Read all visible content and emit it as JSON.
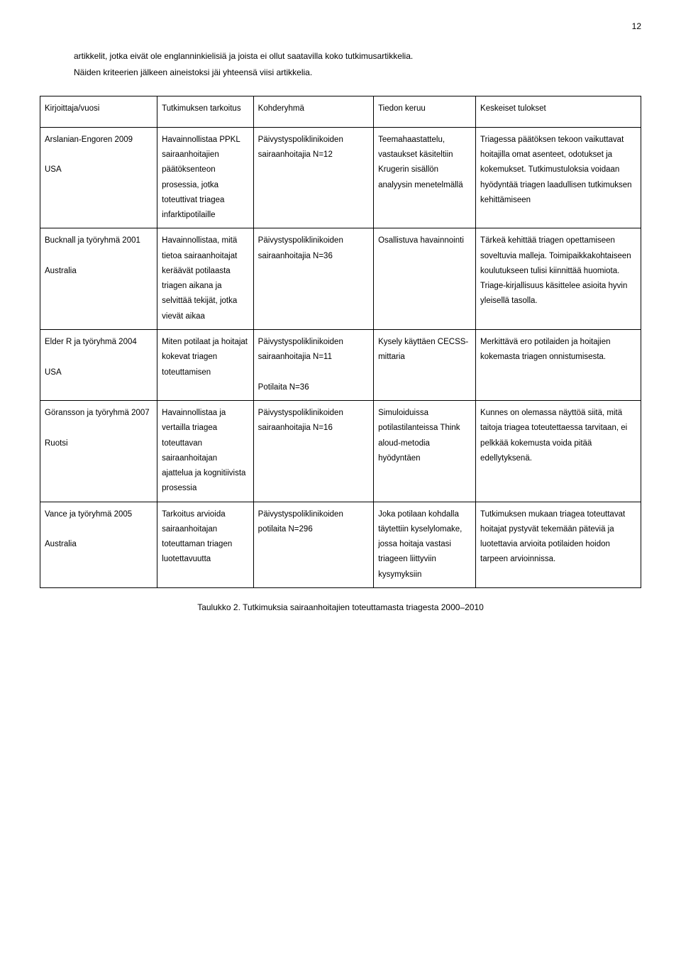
{
  "page_number": "12",
  "intro_line1": "artikkelit, jotka eivät ole englanninkielisiä ja joista ei ollut saatavilla koko tutkimusartikkelia.",
  "intro_line2": "Näiden kriteerien jälkeen aineistoksi jäi yhteensä viisi artikkelia.",
  "header": {
    "c1": "Kirjoittaja/vuosi",
    "c2": "Tutkimuksen tarkoitus",
    "c3": "Kohderyhmä",
    "c4": "Tiedon keruu",
    "c5": "Keskeiset tulokset"
  },
  "rows": [
    {
      "c1": "Arslanian-Engoren 2009\n\nUSA",
      "c2": "Havainnollistaa PPKL sairaanhoitajien päätöksenteon prosessia, jotka toteuttivat triagea infarktipotilaille",
      "c3": "Päivystyspoliklinikoiden sairaanhoitajia N=12",
      "c4": "Teemahaastattelu, vastaukset käsiteltiin Krugerin sisällön analyysin menetelmällä",
      "c5": "Triagessa päätöksen tekoon vaikuttavat hoitajilla omat asenteet, odotukset ja kokemukset. Tutkimustuloksia voidaan hyödyntää triagen laadullisen tutkimuksen kehittämiseen"
    },
    {
      "c1": "Bucknall ja työryhmä 2001\n\nAustralia",
      "c2": "Havainnollistaa, mitä tietoa sairaanhoitajat keräävät potilaasta triagen aikana ja selvittää tekijät, jotka vievät aikaa",
      "c3": "Päivystyspoliklinikoiden sairaanhoitajia N=36",
      "c4": "Osallistuva havainnointi",
      "c5": "Tärkeä kehittää triagen opettamiseen soveltuvia malleja. Toimipaikkakohtaiseen koulutukseen tulisi kiinnittää huomiota. Triage-kirjallisuus käsittelee asioita hyvin yleisellä tasolla."
    },
    {
      "c1": "Elder R ja työryhmä 2004\n\nUSA",
      "c2": "Miten potilaat ja hoitajat kokevat triagen toteuttamisen",
      "c3": "Päivystyspoliklinikoiden sairaanhoitajia N=11\n\nPotilaita N=36",
      "c4": "Kysely käyttäen CECSS-mittaria",
      "c5": "Merkittävä ero potilaiden ja hoitajien kokemasta triagen onnistumisesta."
    },
    {
      "c1": "Göransson ja työryhmä 2007\n\nRuotsi",
      "c2": "Havainnollistaa ja vertailla triagea toteuttavan sairaanhoitajan ajattelua ja kognitiivista prosessia",
      "c3": "Päivystyspoliklinikoiden sairaanhoitajia N=16",
      "c4": "Simuloiduissa potilastilanteissa Think aloud-metodia hyödyntäen",
      "c5": "Kunnes on olemassa näyttöä siitä, mitä taitoja triagea toteutettaessa tarvitaan, ei pelkkää kokemusta voida pitää edellytyksenä."
    },
    {
      "c1": "Vance ja työryhmä 2005\n\nAustralia",
      "c2": "Tarkoitus arvioida sairaanhoitajan toteuttaman triagen luotettavuutta",
      "c3": "Päivystyspoliklinikoiden potilaita N=296",
      "c4": "Joka potilaan kohdalla täytettiin kyselylomake, jossa hoitaja vastasi triageen liittyviin kysymyksiin",
      "c5": "Tutkimuksen mukaan triagea toteuttavat hoitajat pystyvät tekemään päteviä ja luotettavia arvioita potilaiden hoidon tarpeen arvioinnissa."
    }
  ],
  "caption": "Taulukko 2. Tutkimuksia sairaanhoitajien toteuttamasta triagesta 2000–2010"
}
